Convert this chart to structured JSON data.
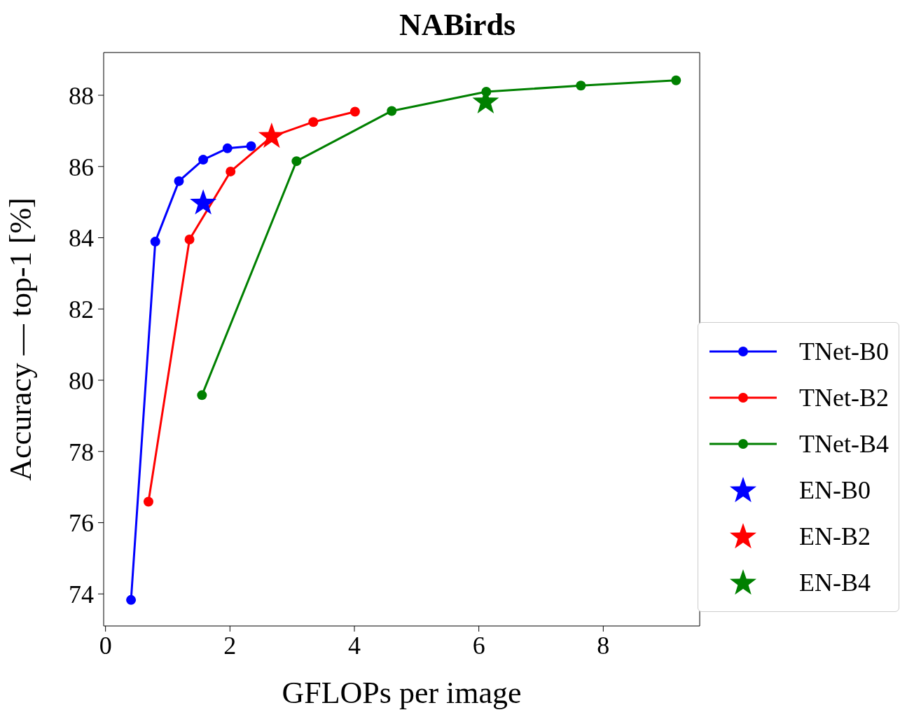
{
  "chart_data": {
    "type": "line",
    "title": "NABirds",
    "xlabel": "GFLOPs per image",
    "ylabel": "Accuracy — top-1 [%]",
    "xlim": [
      -0.03,
      9.55
    ],
    "xticks": [
      0,
      2,
      4,
      6,
      8
    ],
    "ylim": [
      73.1,
      89.2
    ],
    "yticks": [
      74,
      76,
      78,
      80,
      82,
      84,
      86,
      88
    ],
    "grid": false,
    "legend": "bottom right",
    "series": [
      {
        "name": "TNet-B0",
        "type": "line",
        "marker": "circle",
        "color": "#0000ff",
        "x": [
          0.41,
          0.8,
          1.18,
          1.57,
          1.96,
          2.34
        ],
        "values": [
          73.83,
          83.89,
          85.59,
          86.19,
          86.51,
          86.57
        ]
      },
      {
        "name": "TNet-B2",
        "type": "line",
        "marker": "circle",
        "color": "#ff0000",
        "x": [
          0.69,
          1.35,
          2.01,
          2.67,
          3.34,
          4.01
        ],
        "values": [
          76.59,
          83.95,
          85.86,
          86.84,
          87.25,
          87.54
        ]
      },
      {
        "name": "TNet-B4",
        "type": "line",
        "marker": "circle",
        "color": "#008000",
        "x": [
          1.55,
          3.07,
          4.6,
          6.12,
          7.64,
          9.17
        ],
        "values": [
          79.58,
          86.15,
          87.56,
          88.1,
          88.27,
          88.42
        ]
      },
      {
        "name": "EN-B0",
        "type": "scatter",
        "marker": "star",
        "color": "#0000ff",
        "x": [
          1.57
        ],
        "values": [
          84.97
        ]
      },
      {
        "name": "EN-B2",
        "type": "scatter",
        "marker": "star",
        "color": "#ff0000",
        "x": [
          2.67
        ],
        "values": [
          86.84
        ]
      },
      {
        "name": "EN-B4",
        "type": "scatter",
        "marker": "star",
        "color": "#008000",
        "x": [
          6.11
        ],
        "values": [
          87.81
        ]
      }
    ]
  }
}
